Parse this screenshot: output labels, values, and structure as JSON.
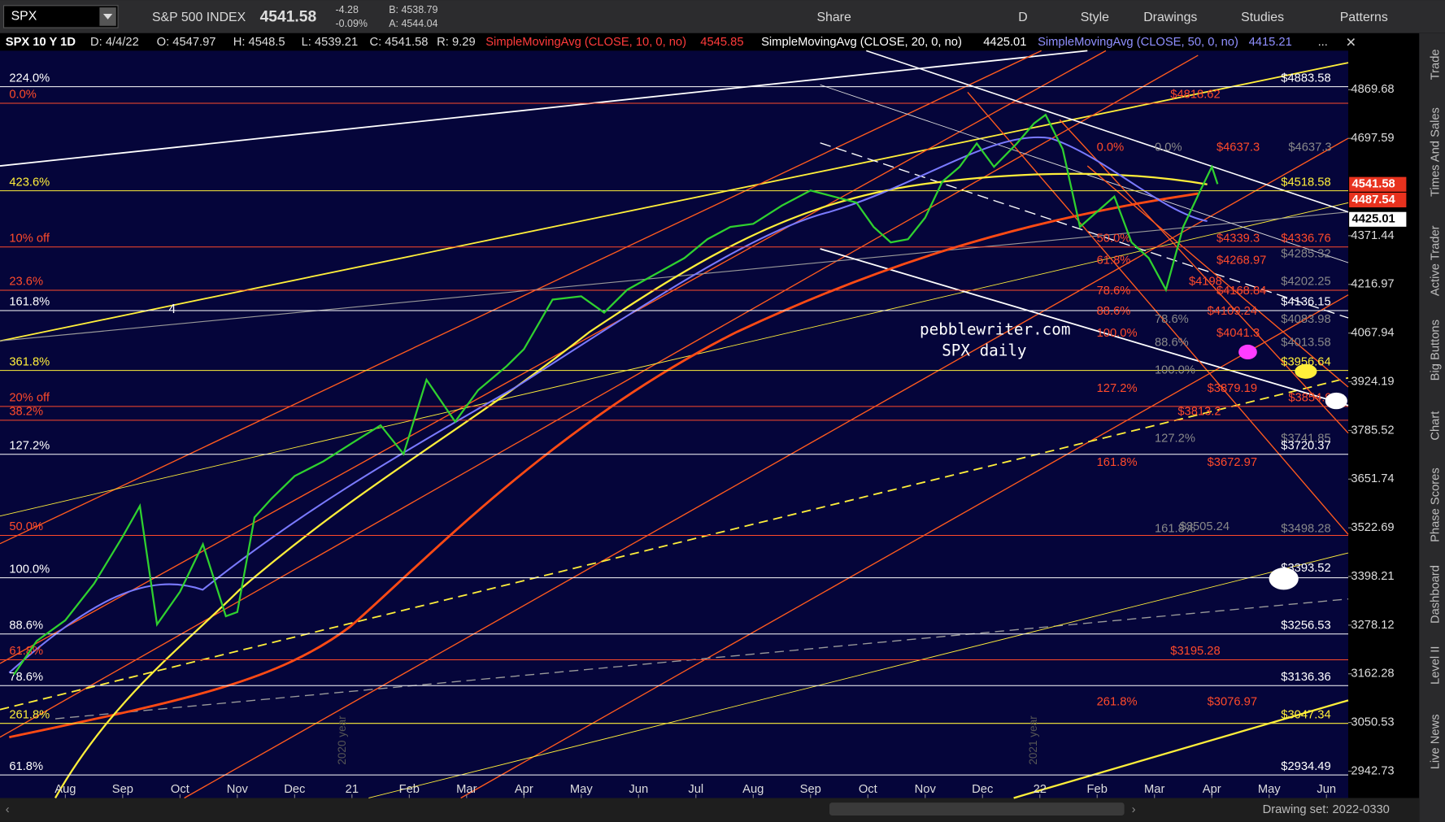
{
  "toolbar": {
    "symbol": "SPX",
    "name": "S&P 500 INDEX",
    "price": "4541.58",
    "change": "-4.28",
    "change_pct": "-0.09%",
    "bid": "B: 4538.79",
    "ask": "A: 4544.04",
    "buttons": [
      "Share",
      "D",
      "Style",
      "Drawings",
      "Studies",
      "Patterns"
    ]
  },
  "info_bar": {
    "items": [
      "SPX 10 Y 1D",
      "D: 4/4/22",
      "O: 4547.97",
      "H: 4548.5",
      "L: 4539.21",
      "C: 4541.58",
      "R: 9.29"
    ],
    "studies": [
      {
        "text": "SimpleMovingAvg (CLOSE, 10, 0, no)",
        "value": "4545.85",
        "color": "#ff3b3b"
      },
      {
        "text": "SimpleMovingAvg (CLOSE, 20, 0, no)",
        "value": "4425.01",
        "color": "#ffffff"
      },
      {
        "text": "SimpleMovingAvg (CLOSE, 50, 0, no)",
        "value": "4415.21",
        "color": "#8f8fff"
      }
    ],
    "more": "..."
  },
  "chart_data": {
    "type": "line",
    "log_scale": true,
    "grid": false,
    "x": [
      0.1,
      0.5,
      1,
      1.5,
      2,
      2.3,
      2.6,
      3,
      3.4,
      3.8,
      4,
      4.3,
      4.6,
      5,
      5.5,
      6,
      6.5,
      6.9,
      7.3,
      7.8,
      8.2,
      8.7,
      9,
      9.5,
      10,
      10.4,
      10.8,
      11.3,
      11.8,
      12.2,
      12.6,
      13,
      13.5,
      14,
      14.4,
      14.8,
      15.1,
      15.4,
      15.7,
      16,
      16.3,
      16.6,
      16.9,
      17.2,
      17.6,
      17.9,
      18.1,
      18.4,
      18.7,
      19,
      19.3,
      19.6,
      19.9,
      20.2,
      20.5,
      20.8,
      21.0,
      21.1
    ],
    "series": [
      {
        "name": "SPX",
        "color": "#2fd12f",
        "values": [
          3160,
          3240,
          3290,
          3380,
          3500,
          3580,
          3280,
          3360,
          3480,
          3300,
          3310,
          3550,
          3600,
          3660,
          3700,
          3750,
          3800,
          3720,
          3930,
          3810,
          3900,
          3970,
          4020,
          4170,
          4180,
          4130,
          4200,
          4250,
          4300,
          4360,
          4400,
          4410,
          4470,
          4520,
          4500,
          4480,
          4400,
          4350,
          4360,
          4430,
          4550,
          4600,
          4680,
          4600,
          4680,
          4750,
          4780,
          4660,
          4400,
          4450,
          4500,
          4350,
          4300,
          4200,
          4400,
          4520,
          4600,
          4541.58
        ]
      }
    ],
    "xlim": [
      -0.14,
      23.38
    ],
    "xticks": [
      {
        "value": 1,
        "label": "Aug"
      },
      {
        "value": 2,
        "label": "Sep"
      },
      {
        "value": 3,
        "label": "Oct"
      },
      {
        "value": 4,
        "label": "Nov"
      },
      {
        "value": 5,
        "label": "Dec"
      },
      {
        "value": 6,
        "label": "21"
      },
      {
        "value": 7,
        "label": "Feb"
      },
      {
        "value": 8,
        "label": "Mar"
      },
      {
        "value": 9,
        "label": "Apr"
      },
      {
        "value": 10,
        "label": "May"
      },
      {
        "value": 11,
        "label": "Jun"
      },
      {
        "value": 12,
        "label": "Jul"
      },
      {
        "value": 13,
        "label": "Aug"
      },
      {
        "value": 14,
        "label": "Sep"
      },
      {
        "value": 15,
        "label": "Oct"
      },
      {
        "value": 16,
        "label": "Nov"
      },
      {
        "value": 17,
        "label": "Dec"
      },
      {
        "value": 18,
        "label": "22"
      },
      {
        "value": 19,
        "label": "Feb"
      },
      {
        "value": 20,
        "label": "Mar"
      },
      {
        "value": 21,
        "label": "Apr"
      },
      {
        "value": 22,
        "label": "May"
      },
      {
        "value": 23,
        "label": "Jun"
      }
    ],
    "ylim": [
      2885,
      5012
    ],
    "yticks": [
      4869.68,
      4697.59,
      4371.44,
      4216.97,
      4067.94,
      3924.19,
      3785.52,
      3651.74,
      3522.69,
      3398.21,
      3278.12,
      3162.28,
      3050.53,
      2942.73
    ],
    "price_badges": [
      {
        "text": "4541.58",
        "color": "#e8321e"
      },
      {
        "text": "4487.54",
        "color": "#e8321e"
      },
      {
        "text": "4425.01",
        "color": "#ffffff"
      }
    ],
    "left_levels": [
      "224.0%",
      "0.0%",
      "423.6%",
      "10% off",
      "23.6%",
      "161.8%",
      "361.8%",
      "20% off",
      "38.2%",
      "127.2%",
      "50.0%",
      "100.0%",
      "88.6%",
      "61.8%",
      "78.6%",
      "261.8%",
      "61.8%"
    ],
    "right_levels": [
      "$4883.58",
      "$4818.62",
      "$4637.3",
      "$4637.3",
      "$4518.58",
      "$4336.76",
      "$4339.3",
      "$4285.32",
      "$4268.97",
      "$4202.25",
      "$4198",
      "$4168.84",
      "$4136.15",
      "$4109.24",
      "$4083.98",
      "$4041.3",
      "$4013.58",
      "$3956.64",
      "$3879.19",
      "$3854.9",
      "$3813.2",
      "$3741.85",
      "$3720.37",
      "$3672.97",
      "$3505.24",
      "$3498.28",
      "$3393.52",
      "$3256.53",
      "$3195.28",
      "$3136.36",
      "$3076.97",
      "$3047.34",
      "$2934.49"
    ],
    "mid_levels": [
      "0.0%",
      "0.0%",
      "50.0%",
      "61.8%",
      "78.6%",
      "88.6%",
      "100.0%",
      "78.6%",
      "88.6%",
      "100.0%",
      "127.2%",
      "127.2%",
      "161.8%",
      "161.8%",
      "261.8%"
    ],
    "annotations": {
      "wave": "4",
      "watermark1": "pebblewriter.com",
      "watermark2": "SPX daily",
      "year1": "2020 year",
      "year2": "2021 year"
    }
  },
  "sidebar": [
    "Trade",
    "Times And Sales",
    "Active Trader",
    "Big Buttons",
    "Chart",
    "Phase Scores",
    "Dashboard",
    "Level II",
    "Live News"
  ],
  "footer": {
    "drawing_set": "Drawing set: 2022-0330"
  }
}
